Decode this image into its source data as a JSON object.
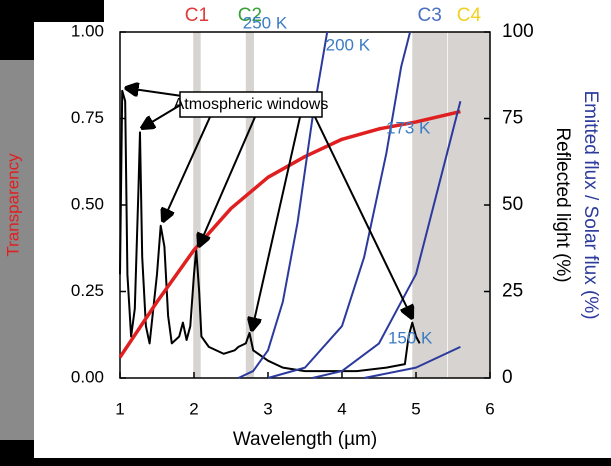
{
  "chart_data": {
    "type": "line",
    "ylabel": "Transparency",
    "xlabel": "Wavelength (µm)",
    "y2labels": [
      "Emitted flux  / Solar flux (%)",
      "Reflected light (%)"
    ],
    "annotation": "Atmospheric windows",
    "xlim": [
      1,
      6
    ],
    "xticks": [
      1,
      2,
      3,
      4,
      5,
      6
    ],
    "ylim": [
      0,
      1
    ],
    "yticks": [
      {
        "value": 0,
        "label": "0.00"
      },
      {
        "value": 0.25,
        "label": "0.25"
      },
      {
        "value": 0.5,
        "label": "0.50"
      },
      {
        "value": 0.75,
        "label": "0.75"
      },
      {
        "value": 1,
        "label": "1.00"
      }
    ],
    "y2lim": [
      0,
      100
    ],
    "y2ticks": [
      0,
      25,
      50,
      75,
      100
    ],
    "bands": [
      {
        "label": "C1",
        "color": "#e03a3a",
        "range": [
          1.99,
          2.09
        ]
      },
      {
        "label": "C2",
        "color": "#3aa03a",
        "range": [
          2.7,
          2.81
        ]
      },
      {
        "label": "C3",
        "color": "#4a6fc4",
        "range": [
          4.95,
          5.42
        ]
      },
      {
        "label": "C4",
        "color": "#f0d020",
        "range": [
          5.43,
          6.0
        ]
      }
    ],
    "series": [
      {
        "color": "#000000",
        "axis": "y",
        "x": [
          1.0,
          1.03,
          1.07,
          1.1,
          1.15,
          1.2,
          1.25,
          1.27,
          1.3,
          1.35,
          1.4,
          1.45,
          1.5,
          1.55,
          1.6,
          1.65,
          1.7,
          1.8,
          1.85,
          1.9,
          1.95,
          2.0,
          2.03,
          2.07,
          2.1,
          2.2,
          2.4,
          2.55,
          2.6,
          2.7,
          2.75,
          2.8,
          3.0,
          3.2,
          3.5,
          3.8,
          4.2,
          4.6,
          4.85,
          4.9,
          4.95,
          5.0,
          5.05
        ],
        "values": [
          0.3,
          0.83,
          0.8,
          0.3,
          0.12,
          0.2,
          0.55,
          0.71,
          0.35,
          0.15,
          0.1,
          0.2,
          0.3,
          0.44,
          0.38,
          0.18,
          0.1,
          0.12,
          0.16,
          0.11,
          0.15,
          0.3,
          0.37,
          0.25,
          0.12,
          0.09,
          0.07,
          0.08,
          0.09,
          0.1,
          0.13,
          0.08,
          0.05,
          0.03,
          0.02,
          0.02,
          0.02,
          0.03,
          0.04,
          0.12,
          0.16,
          0.12,
          0.1
        ]
      },
      {
        "color": "#e02020",
        "axis": "y2",
        "x": [
          1,
          1.5,
          2,
          2.5,
          3,
          3.5,
          4,
          4.5,
          5,
          5.6
        ],
        "values": [
          6,
          22,
          37,
          49,
          58,
          64,
          69,
          72,
          74,
          77
        ]
      },
      {
        "name": "250 K",
        "color": "#2b3a9c",
        "axis": "y2",
        "x": [
          2.6,
          2.8,
          3.0,
          3.2,
          3.4,
          3.6,
          3.8
        ],
        "values": [
          0,
          2,
          8,
          22,
          45,
          75,
          100
        ]
      },
      {
        "name": "200 K",
        "color": "#2b3a9c",
        "axis": "y2",
        "x": [
          3.0,
          3.5,
          4.0,
          4.3,
          4.6,
          4.8,
          4.92
        ],
        "values": [
          0,
          3,
          15,
          35,
          65,
          90,
          100
        ]
      },
      {
        "name": "173 K",
        "color": "#2b3a9c",
        "axis": "y2",
        "x": [
          3.6,
          4.0,
          4.5,
          5.0,
          5.3,
          5.6
        ],
        "values": [
          0,
          2,
          10,
          30,
          55,
          80
        ]
      },
      {
        "name": "150 K",
        "color": "#2b3a9c",
        "axis": "y2",
        "x": [
          4.3,
          5.0,
          5.3,
          5.6
        ],
        "values": [
          0,
          3,
          6,
          9
        ]
      }
    ]
  }
}
